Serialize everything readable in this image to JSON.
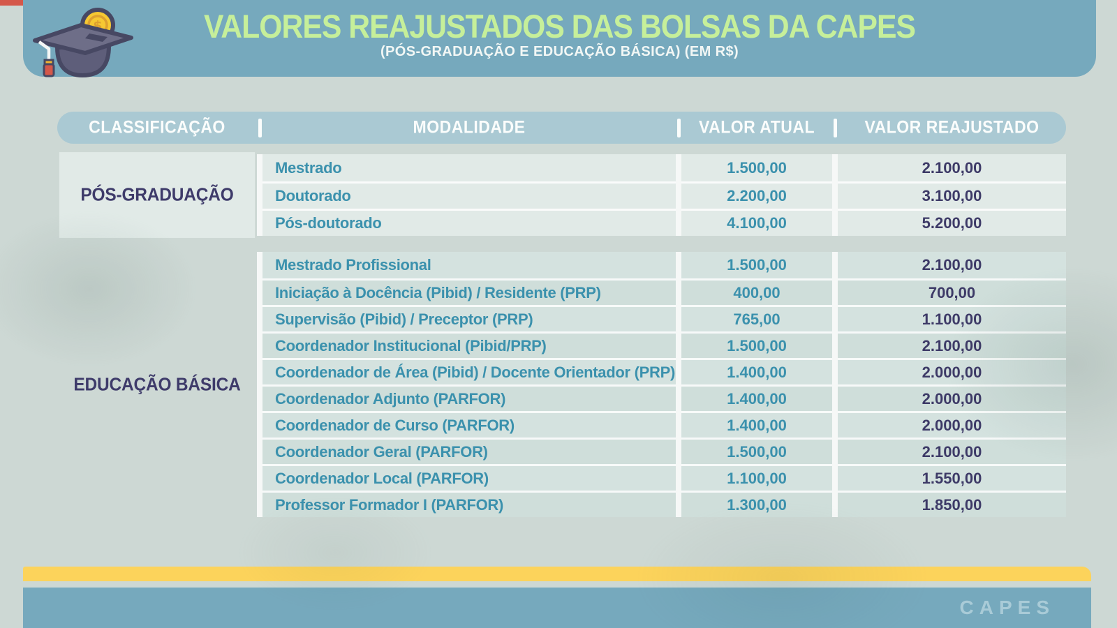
{
  "header": {
    "title": "VALORES REAJUSTADOS DAS BOLSAS DA CAPES",
    "subtitle": "(PÓS-GRADUAÇÃO E EDUCAÇÃO BÁSICA) (EM R$)",
    "icon": "graduation-cap-coin-icon"
  },
  "colors": {
    "header_band": "#76a9bd",
    "title_green": "#c6ef9a",
    "table_header": "#aac9d3",
    "group1_bg": "#e1eae7",
    "group2_bg": "#d4e2df",
    "teal_text": "#3b91ad",
    "purple_text": "#3d3a67",
    "yellow_bar": "#fcd35b",
    "coin_gold": "#f6c832",
    "tassel_red": "#d4584a",
    "page_bg": "#cdd8d4"
  },
  "table": {
    "columns": [
      "CLASSIFICAÇÃO",
      "MODALIDADE",
      "VALOR ATUAL",
      "VALOR REAJUSTADO"
    ],
    "groups": [
      {
        "classification": "PÓS-GRADUAÇÃO",
        "rows": [
          {
            "modalidade": "Mestrado",
            "valor_atual": "1.500,00",
            "valor_reajustado": "2.100,00"
          },
          {
            "modalidade": "Doutorado",
            "valor_atual": "2.200,00",
            "valor_reajustado": "3.100,00"
          },
          {
            "modalidade": "Pós-doutorado",
            "valor_atual": "4.100,00",
            "valor_reajustado": "5.200,00"
          }
        ]
      },
      {
        "classification": "EDUCAÇÃO BÁSICA",
        "rows": [
          {
            "modalidade": "Mestrado Profissional",
            "valor_atual": "1.500,00",
            "valor_reajustado": "2.100,00"
          },
          {
            "modalidade": "Iniciação à Docência (Pibid) / Residente (PRP)",
            "valor_atual": "400,00",
            "valor_reajustado": "700,00"
          },
          {
            "modalidade": "Supervisão (Pibid) / Preceptor (PRP)",
            "valor_atual": "765,00",
            "valor_reajustado": "1.100,00"
          },
          {
            "modalidade": "Coordenador Institucional (Pibid/PRP)",
            "valor_atual": "1.500,00",
            "valor_reajustado": "2.100,00"
          },
          {
            "modalidade": "Coordenador de Área (Pibid) / Docente Orientador (PRP)",
            "valor_atual": "1.400,00",
            "valor_reajustado": "2.000,00"
          },
          {
            "modalidade": "Coordenador Adjunto (PARFOR)",
            "valor_atual": "1.400,00",
            "valor_reajustado": "2.000,00"
          },
          {
            "modalidade": "Coordenador de Curso (PARFOR)",
            "valor_atual": "1.400,00",
            "valor_reajustado": "2.000,00"
          },
          {
            "modalidade": "Coordenador Geral (PARFOR)",
            "valor_atual": "1.500,00",
            "valor_reajustado": "2.100,00"
          },
          {
            "modalidade": "Coordenador Local (PARFOR)",
            "valor_atual": "1.100,00",
            "valor_reajustado": "1.550,00"
          },
          {
            "modalidade": "Professor Formador I (PARFOR)",
            "valor_atual": "1.300,00",
            "valor_reajustado": "1.850,00"
          }
        ]
      }
    ]
  },
  "footer": {
    "brand": "CAPES"
  },
  "chart_data": {
    "type": "table",
    "title": "VALORES REAJUSTADOS DAS BOLSAS DA CAPES",
    "subtitle": "(PÓS-GRADUAÇÃO E EDUCAÇÃO BÁSICA) (EM R$)",
    "columns": [
      "CLASSIFICAÇÃO",
      "MODALIDADE",
      "VALOR ATUAL",
      "VALOR REAJUSTADO"
    ],
    "rows": [
      [
        "PÓS-GRADUAÇÃO",
        "Mestrado",
        "1.500,00",
        "2.100,00"
      ],
      [
        "PÓS-GRADUAÇÃO",
        "Doutorado",
        "2.200,00",
        "3.100,00"
      ],
      [
        "PÓS-GRADUAÇÃO",
        "Pós-doutorado",
        "4.100,00",
        "5.200,00"
      ],
      [
        "EDUCAÇÃO BÁSICA",
        "Mestrado Profissional",
        "1.500,00",
        "2.100,00"
      ],
      [
        "EDUCAÇÃO BÁSICA",
        "Iniciação à Docência (Pibid) / Residente (PRP)",
        "400,00",
        "700,00"
      ],
      [
        "EDUCAÇÃO BÁSICA",
        "Supervisão (Pibid) / Preceptor (PRP)",
        "765,00",
        "1.100,00"
      ],
      [
        "EDUCAÇÃO BÁSICA",
        "Coordenador Institucional (Pibid/PRP)",
        "1.500,00",
        "2.100,00"
      ],
      [
        "EDUCAÇÃO BÁSICA",
        "Coordenador de Área (Pibid) / Docente Orientador (PRP)",
        "1.400,00",
        "2.000,00"
      ],
      [
        "EDUCAÇÃO BÁSICA",
        "Coordenador Adjunto (PARFOR)",
        "1.400,00",
        "2.000,00"
      ],
      [
        "EDUCAÇÃO BÁSICA",
        "Coordenador de Curso (PARFOR)",
        "1.400,00",
        "2.000,00"
      ],
      [
        "EDUCAÇÃO BÁSICA",
        "Coordenador Geral (PARFOR)",
        "1.500,00",
        "2.100,00"
      ],
      [
        "EDUCAÇÃO BÁSICA",
        "Coordenador Local (PARFOR)",
        "1.100,00",
        "1.550,00"
      ],
      [
        "EDUCAÇÃO BÁSICA",
        "Professor Formador I (PARFOR)",
        "1.300,00",
        "1.850,00"
      ]
    ]
  }
}
